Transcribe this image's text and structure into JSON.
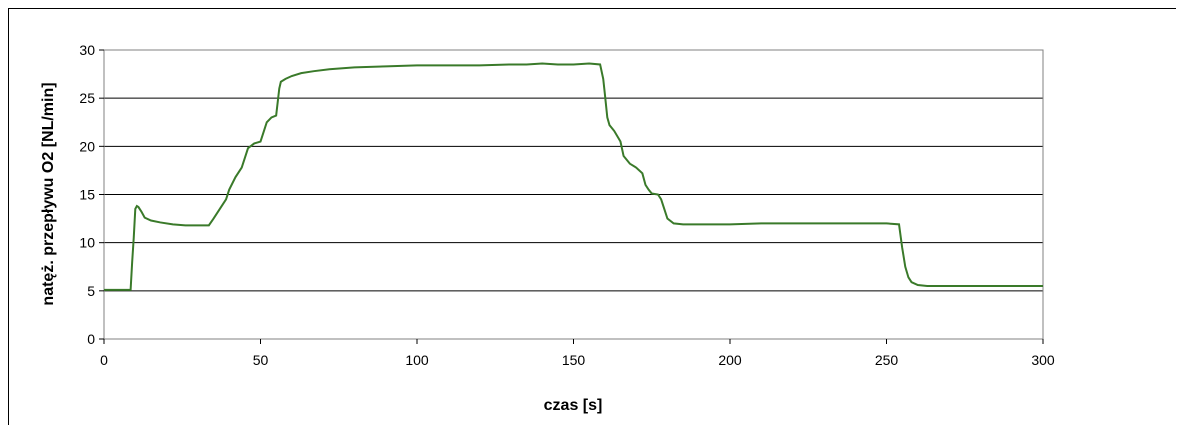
{
  "chart_data": {
    "type": "line",
    "xlabel": "czas [s]",
    "ylabel": "natęż. przepływu O2 [NL/min]",
    "xlim": [
      0,
      300
    ],
    "ylim": [
      0,
      30
    ],
    "xticks": [
      0,
      50,
      100,
      150,
      200,
      250,
      300
    ],
    "yticks": [
      0,
      5,
      10,
      15,
      20,
      25,
      30
    ],
    "grid": "horizontal",
    "legend": "none",
    "series": [
      {
        "color": "#3a7a2a",
        "points": [
          [
            0,
            5.1
          ],
          [
            8.5,
            5.1
          ],
          [
            9,
            8
          ],
          [
            9.5,
            10.5
          ],
          [
            10,
            13.5
          ],
          [
            10.5,
            13.8
          ],
          [
            11,
            13.7
          ],
          [
            12,
            13.2
          ],
          [
            13,
            12.6
          ],
          [
            15,
            12.3
          ],
          [
            18,
            12.1
          ],
          [
            22,
            11.9
          ],
          [
            26,
            11.8
          ],
          [
            30,
            11.8
          ],
          [
            33.5,
            11.8
          ],
          [
            35,
            12.5
          ],
          [
            37,
            13.5
          ],
          [
            39,
            14.5
          ],
          [
            40,
            15.5
          ],
          [
            42,
            16.8
          ],
          [
            44,
            17.8
          ],
          [
            45,
            18.8
          ],
          [
            46,
            19.8
          ],
          [
            48,
            20.3
          ],
          [
            50,
            20.5
          ],
          [
            51,
            21.5
          ],
          [
            52,
            22.5
          ],
          [
            53.5,
            23
          ],
          [
            55,
            23.2
          ],
          [
            56,
            26
          ],
          [
            56.5,
            26.7
          ],
          [
            58,
            27
          ],
          [
            60,
            27.3
          ],
          [
            63,
            27.6
          ],
          [
            67,
            27.8
          ],
          [
            72,
            28
          ],
          [
            80,
            28.2
          ],
          [
            90,
            28.3
          ],
          [
            100,
            28.4
          ],
          [
            110,
            28.4
          ],
          [
            120,
            28.4
          ],
          [
            130,
            28.5
          ],
          [
            135,
            28.5
          ],
          [
            140,
            28.6
          ],
          [
            145,
            28.5
          ],
          [
            150,
            28.5
          ],
          [
            155,
            28.6
          ],
          [
            158.5,
            28.5
          ],
          [
            159.5,
            27
          ],
          [
            160,
            25.5
          ],
          [
            160.8,
            23
          ],
          [
            161.5,
            22.2
          ],
          [
            163,
            21.6
          ],
          [
            165,
            20.5
          ],
          [
            166,
            19
          ],
          [
            168,
            18.2
          ],
          [
            170,
            17.8
          ],
          [
            172,
            17.2
          ],
          [
            173,
            16
          ],
          [
            174,
            15.5
          ],
          [
            175,
            15.1
          ],
          [
            177,
            15
          ],
          [
            178,
            14.5
          ],
          [
            179,
            13.5
          ],
          [
            180,
            12.5
          ],
          [
            182,
            12
          ],
          [
            185,
            11.9
          ],
          [
            190,
            11.9
          ],
          [
            200,
            11.9
          ],
          [
            210,
            12
          ],
          [
            220,
            12
          ],
          [
            230,
            12
          ],
          [
            240,
            12
          ],
          [
            250,
            12
          ],
          [
            254,
            11.9
          ],
          [
            255,
            9.5
          ],
          [
            256,
            7.5
          ],
          [
            257,
            6.4
          ],
          [
            258,
            5.9
          ],
          [
            260,
            5.6
          ],
          [
            263,
            5.5
          ],
          [
            270,
            5.5
          ],
          [
            280,
            5.5
          ],
          [
            290,
            5.5
          ],
          [
            300,
            5.5
          ]
        ]
      }
    ]
  }
}
